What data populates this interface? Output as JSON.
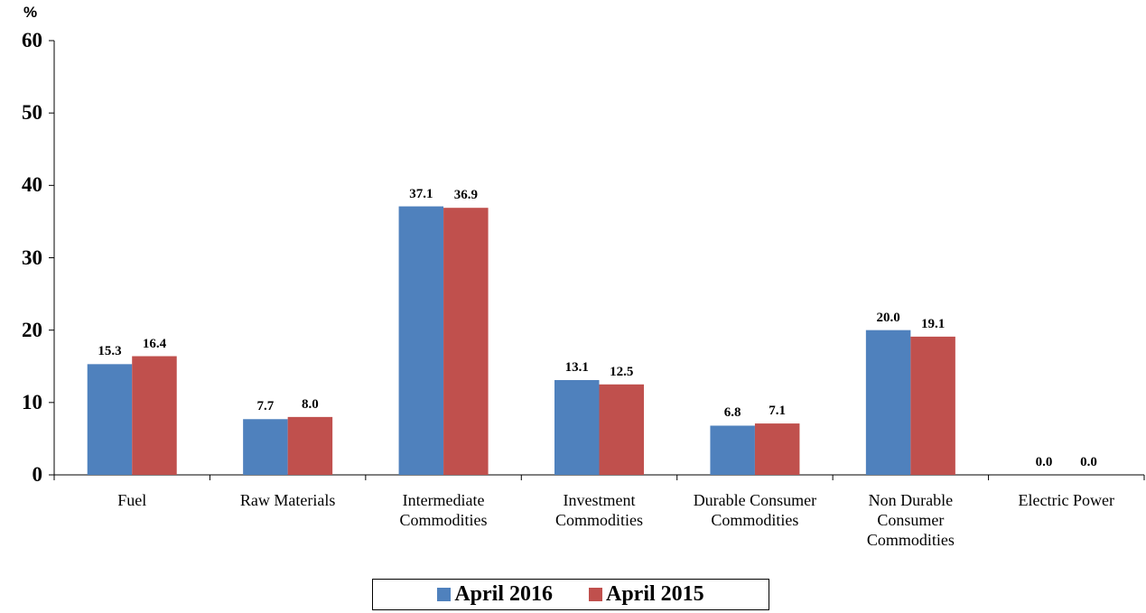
{
  "chart_data": {
    "type": "bar",
    "y_label": "%",
    "categories": [
      "Fuel",
      "Raw Materials",
      "Intermediate Commodities",
      "Investment Commodities",
      "Durable Consumer Commodities",
      "Non Durable Consumer Commodities",
      "Electric Power"
    ],
    "series": [
      {
        "name": "April 2016",
        "color": "#4f81bd",
        "values": [
          15.3,
          7.7,
          37.1,
          13.1,
          6.8,
          20.0,
          0.0
        ],
        "value_labels": [
          "15.3",
          "7.7",
          "37.1",
          "13.1",
          "6.8",
          "20.0",
          "0.0"
        ]
      },
      {
        "name": "April 2015",
        "color": "#c0504d",
        "values": [
          16.4,
          8.0,
          36.9,
          12.5,
          7.1,
          19.1,
          0.0
        ],
        "value_labels": [
          "16.4",
          "8.0",
          "36.9",
          "12.5",
          "7.1",
          "19.1",
          "0.0"
        ]
      }
    ],
    "ylim": [
      0,
      60
    ],
    "yticks": [
      0,
      10,
      20,
      30,
      40,
      50,
      60
    ],
    "grid": false,
    "legend": "bottom"
  }
}
